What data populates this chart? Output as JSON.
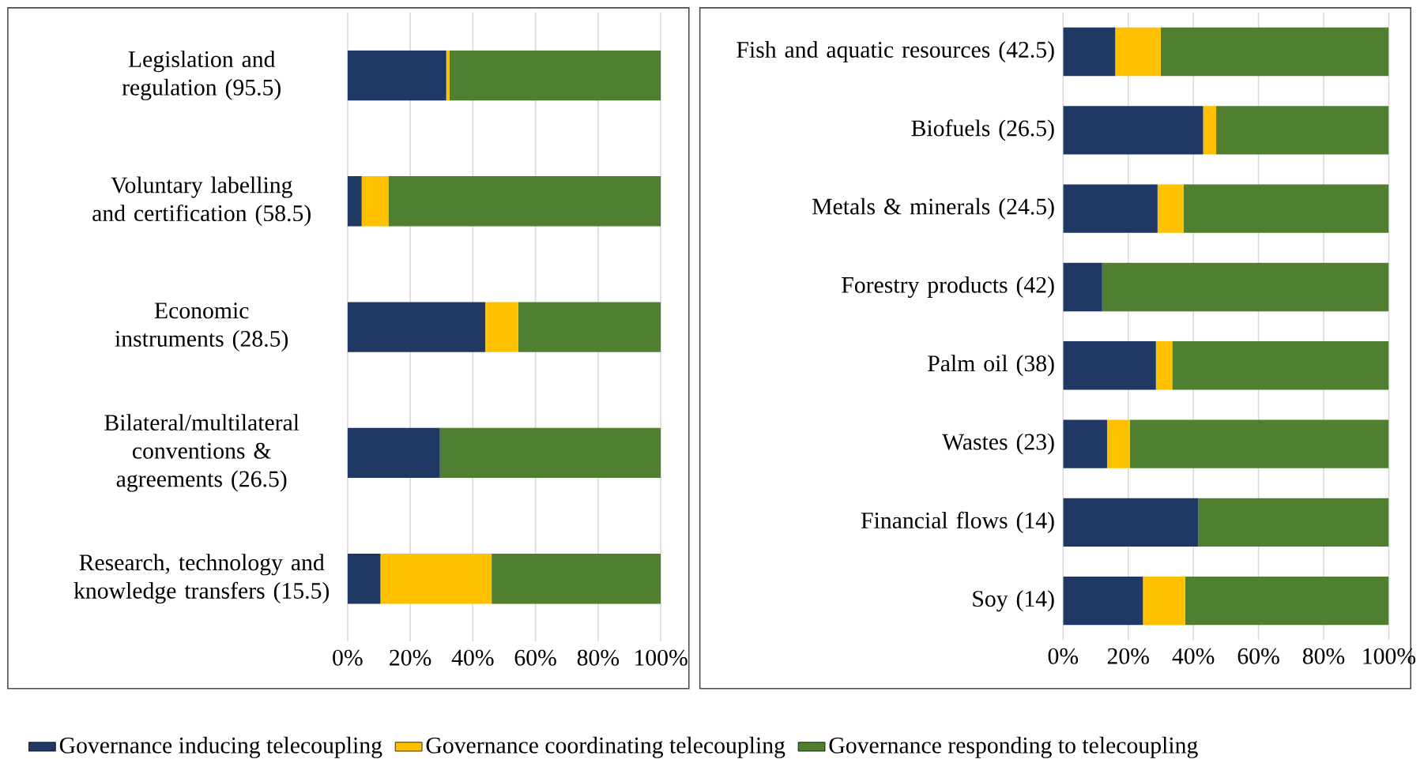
{
  "chart_data": [
    {
      "type": "bar",
      "orientation": "horizontal",
      "stacked": true,
      "grid": "x",
      "legend": "bottom",
      "categories": [
        "Legislation and regulation (95.5)",
        "Voluntary labelling and certification (58.5)",
        "Economic instruments (28.5)",
        "Bilateral/multilateral conventions & agreements (26.5)",
        "Research, technology and knowledge transfers (15.5)"
      ],
      "xlim": [
        0,
        100
      ],
      "xticks": [
        {
          "value": 0,
          "label": "0%"
        },
        {
          "value": 20,
          "label": "20%"
        },
        {
          "value": 40,
          "label": "40%"
        },
        {
          "value": 60,
          "label": "60%"
        },
        {
          "value": 80,
          "label": "80%"
        },
        {
          "value": 100,
          "label": "100%"
        }
      ],
      "series": [
        {
          "name": "Governance inducing telecoupling",
          "color": "#1f3864",
          "values": [
            31.5,
            4.5,
            44,
            29.5,
            10.5
          ]
        },
        {
          "name": "Governance coordinating telecoupling",
          "color": "#ffc000",
          "values": [
            1,
            8.5,
            10.5,
            0,
            35.5
          ]
        },
        {
          "name": "Governance responding to telecoupling",
          "color": "#4f7f2f",
          "values": [
            67.5,
            87,
            45.5,
            70.5,
            54
          ]
        }
      ]
    },
    {
      "type": "bar",
      "orientation": "horizontal",
      "stacked": true,
      "grid": "x",
      "categories": [
        "Fish and aquatic resources (42.5)",
        "Biofuels (26.5)",
        "Metals & minerals (24.5)",
        "Forestry products (42)",
        "Palm oil (38)",
        "Wastes (23)",
        "Financial flows (14)",
        "Soy (14)"
      ],
      "xlim": [
        0,
        100
      ],
      "xticks": [
        {
          "value": 0,
          "label": "0%"
        },
        {
          "value": 20,
          "label": "20%"
        },
        {
          "value": 40,
          "label": "40%"
        },
        {
          "value": 60,
          "label": "60%"
        },
        {
          "value": 80,
          "label": "80%"
        },
        {
          "value": 100,
          "label": "100%"
        }
      ],
      "series": [
        {
          "color": "#1f3864",
          "values": [
            16,
            43,
            29,
            12,
            28.5,
            13.5,
            41.5,
            24.5
          ]
        },
        {
          "color": "#ffc000",
          "values": [
            14,
            4,
            8,
            0,
            5,
            7,
            0,
            13
          ]
        },
        {
          "color": "#4f7f2f",
          "values": [
            70,
            53,
            63,
            88,
            66.5,
            79.5,
            58.5,
            62.5
          ]
        }
      ]
    }
  ]
}
